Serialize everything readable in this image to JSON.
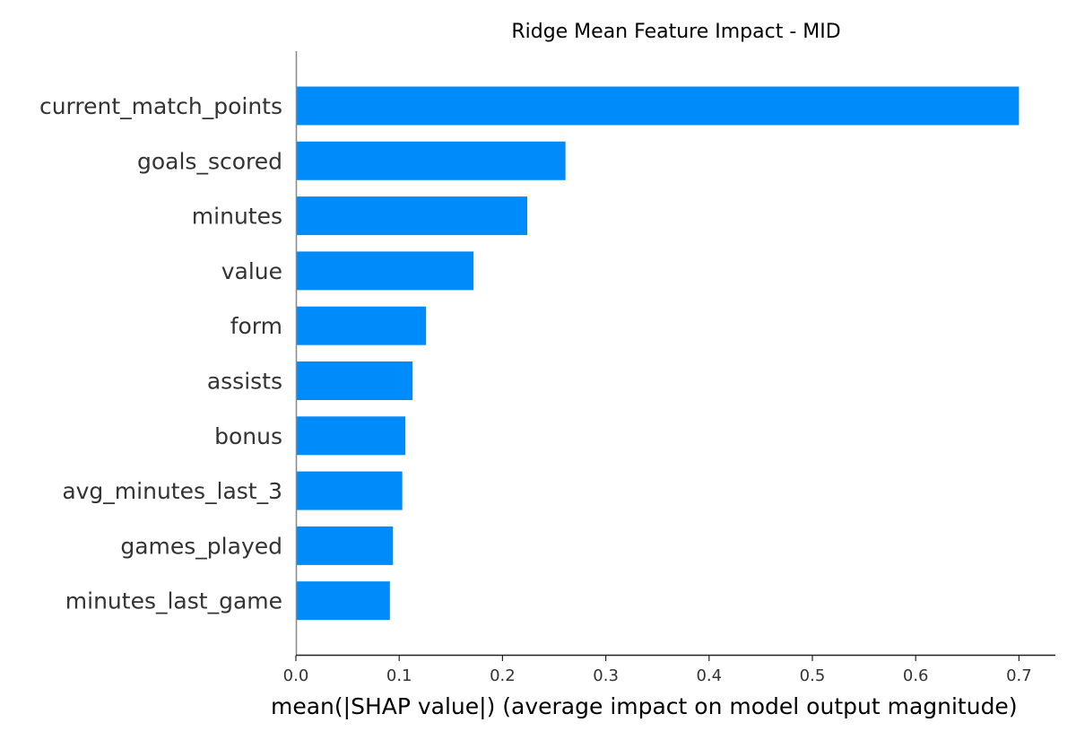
{
  "chart_data": {
    "type": "bar",
    "orientation": "horizontal",
    "title": "Ridge Mean Feature Impact - MID",
    "xlabel": "mean(|SHAP value|) (average impact on model output magnitude)",
    "ylabel": "",
    "categories": [
      "current_match_points",
      "goals_scored",
      "minutes",
      "value",
      "form",
      "assists",
      "bonus",
      "avg_minutes_last_3",
      "games_played",
      "minutes_last_game"
    ],
    "values": [
      0.7,
      0.261,
      0.224,
      0.172,
      0.126,
      0.113,
      0.106,
      0.103,
      0.094,
      0.091
    ],
    "xlim": [
      0,
      0.735
    ],
    "xticks": [
      "0.0",
      "0.1",
      "0.2",
      "0.3",
      "0.4",
      "0.5",
      "0.6",
      "0.7"
    ],
    "bar_color": "#008bfb",
    "grid": false
  }
}
